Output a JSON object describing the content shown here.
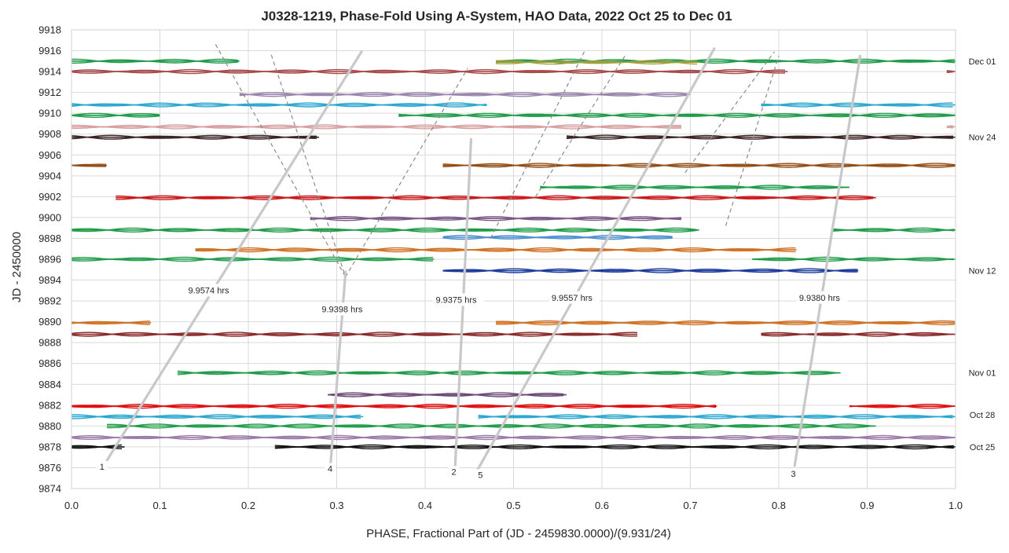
{
  "chart_data": {
    "type": "line",
    "title": "J0328-1219, Phase-Fold Using A-System, HAO Data, 2022 Oct 25 to Dec 01",
    "xlabel": "PHASE, Fractional Part of (JD - 2459830.0000)/(9.931/24)",
    "ylabel": "JD - 2450000",
    "xlim": [
      0,
      1
    ],
    "ylim": [
      9874,
      9918
    ],
    "x_ticks": [
      "0.0",
      "0.1",
      "0.2",
      "0.3",
      "0.4",
      "0.5",
      "0.6",
      "0.7",
      "0.8",
      "0.9",
      "1.0"
    ],
    "y_ticks": [
      "9874",
      "9876",
      "9878",
      "9880",
      "9882",
      "9884",
      "9886",
      "9888",
      "9890",
      "9892",
      "9894",
      "9896",
      "9898",
      "9900",
      "9902",
      "9904",
      "9906",
      "9908",
      "9910",
      "9912",
      "9914",
      "9916",
      "9918"
    ],
    "grid": true,
    "date_labels": [
      {
        "text": "Dec 01",
        "y": 9915
      },
      {
        "text": "Nov 24",
        "y": 9907.7
      },
      {
        "text": "Nov 12",
        "y": 9894.9
      },
      {
        "text": "Nov 01",
        "y": 9885.1
      },
      {
        "text": "Oct 28",
        "y": 9881.1
      },
      {
        "text": "Oct 25",
        "y": 9878
      }
    ],
    "tracks": [
      {
        "y": 9915.0,
        "color": "#1e9c48",
        "segs": [
          [
            0.0,
            0.19
          ],
          [
            0.48,
            1.0
          ]
        ]
      },
      {
        "y": 9914.9,
        "color": "#a0a040",
        "segs": [
          [
            0.48,
            0.71
          ]
        ]
      },
      {
        "y": 9914.0,
        "color": "#a84a4a",
        "segs": [
          [
            0.0,
            0.81
          ],
          [
            0.99,
            1.0
          ]
        ]
      },
      {
        "y": 9911.8,
        "color": "#9a86ad",
        "segs": [
          [
            0.19,
            0.7
          ]
        ]
      },
      {
        "y": 9910.8,
        "color": "#2aa8d0",
        "segs": [
          [
            0.0,
            0.47
          ],
          [
            0.78,
            1.0
          ]
        ]
      },
      {
        "y": 9909.8,
        "color": "#1e9c48",
        "segs": [
          [
            0.0,
            0.1
          ],
          [
            0.37,
            1.0
          ]
        ]
      },
      {
        "y": 9908.7,
        "color": "#d8a0a0",
        "segs": [
          [
            0.0,
            0.69
          ],
          [
            0.99,
            1.0
          ]
        ]
      },
      {
        "y": 9907.7,
        "color": "#3a2424",
        "segs": [
          [
            0.0,
            0.28
          ],
          [
            0.56,
            1.0
          ]
        ]
      },
      {
        "y": 9905.0,
        "color": "#944d14",
        "segs": [
          [
            0.0,
            0.04
          ],
          [
            0.42,
            1.0
          ]
        ]
      },
      {
        "y": 9902.9,
        "color": "#1e9c48",
        "segs": [
          [
            0.53,
            0.88
          ]
        ]
      },
      {
        "y": 9901.9,
        "color": "#cc1a1a",
        "segs": [
          [
            0.05,
            0.91
          ]
        ]
      },
      {
        "y": 9899.9,
        "color": "#7b5a8a",
        "segs": [
          [
            0.27,
            0.69
          ]
        ]
      },
      {
        "y": 9898.8,
        "color": "#1e9c48",
        "segs": [
          [
            0.0,
            0.71
          ],
          [
            0.86,
            1.0
          ]
        ]
      },
      {
        "y": 9898.1,
        "color": "#4a90d0",
        "segs": [
          [
            0.42,
            0.68
          ]
        ]
      },
      {
        "y": 9896.9,
        "color": "#d07020",
        "segs": [
          [
            0.14,
            0.82
          ]
        ]
      },
      {
        "y": 9896.0,
        "color": "#1e9c48",
        "segs": [
          [
            0.0,
            0.41
          ],
          [
            0.77,
            1.0
          ]
        ]
      },
      {
        "y": 9894.9,
        "color": "#1a3a9c",
        "segs": [
          [
            0.42,
            0.89
          ]
        ]
      },
      {
        "y": 9889.9,
        "color": "#d07020",
        "segs": [
          [
            0.0,
            0.09
          ],
          [
            0.48,
            1.0
          ]
        ]
      },
      {
        "y": 9888.8,
        "color": "#8a2a2a",
        "segs": [
          [
            0.0,
            0.64
          ],
          [
            0.78,
            1.0
          ]
        ]
      },
      {
        "y": 9885.1,
        "color": "#1e9c48",
        "segs": [
          [
            0.12,
            0.87
          ]
        ]
      },
      {
        "y": 9883.0,
        "color": "#6a4a7a",
        "segs": [
          [
            0.29,
            0.56
          ]
        ]
      },
      {
        "y": 9881.9,
        "color": "#e01010",
        "segs": [
          [
            0.0,
            0.73
          ],
          [
            0.88,
            1.0
          ]
        ]
      },
      {
        "y": 9880.9,
        "color": "#2aa8d0",
        "segs": [
          [
            0.0,
            0.33
          ],
          [
            0.46,
            1.0
          ]
        ]
      },
      {
        "y": 9880.0,
        "color": "#1e9c48",
        "segs": [
          [
            0.04,
            0.91
          ]
        ]
      },
      {
        "y": 9878.9,
        "color": "#9a7aaa",
        "segs": [
          [
            0.0,
            1.0
          ]
        ]
      },
      {
        "y": 9878.0,
        "color": "#101010",
        "segs": [
          [
            0.0,
            0.06
          ],
          [
            0.23,
            1.0
          ]
        ]
      }
    ],
    "solid_lines": [
      {
        "label": "1",
        "x1": 0.04,
        "y1": 9876.7,
        "x2": 0.328,
        "y2": 9915.9,
        "label_x": 0.03,
        "label_y": 9875.9
      },
      {
        "label": "4",
        "x1": 0.293,
        "y1": 9876.3,
        "x2": 0.31,
        "y2": 9894.8,
        "label_x": 0.288,
        "label_y": 9875.7
      },
      {
        "label": "2",
        "x1": 0.434,
        "y1": 9876.2,
        "x2": 0.452,
        "y2": 9907.5,
        "label_x": 0.428,
        "label_y": 9875.4
      },
      {
        "label": "5",
        "x1": 0.46,
        "y1": 9875.9,
        "x2": 0.727,
        "y2": 9916.2,
        "label_x": 0.458,
        "label_y": 9875.1
      },
      {
        "label": "3",
        "x1": 0.818,
        "y1": 9876.2,
        "x2": 0.892,
        "y2": 9915.5,
        "label_x": 0.812,
        "label_y": 9875.2
      }
    ],
    "dashed_lines": [
      {
        "x1": 0.163,
        "y1": 9916.6,
        "x2": 0.31,
        "y2": 9894.3
      },
      {
        "x1": 0.226,
        "y1": 9915.6,
        "x2": 0.31,
        "y2": 9894.3
      },
      {
        "x1": 0.31,
        "y1": 9894.3,
        "x2": 0.448,
        "y2": 9914.3
      },
      {
        "x1": 0.474,
        "y1": 9898.0,
        "x2": 0.58,
        "y2": 9915.9
      },
      {
        "x1": 0.525,
        "y1": 9902.0,
        "x2": 0.626,
        "y2": 9915.5
      },
      {
        "x1": 0.694,
        "y1": 9904.3,
        "x2": 0.795,
        "y2": 9915.9
      },
      {
        "x1": 0.74,
        "y1": 9899.2,
        "x2": 0.8,
        "y2": 9915.5
      }
    ],
    "annotations": [
      {
        "text": "9.9574 hrs",
        "x": 0.132,
        "y": 9892.8
      },
      {
        "text": "9.9398 hrs",
        "x": 0.283,
        "y": 9891.0
      },
      {
        "text": "9.9375 hrs",
        "x": 0.412,
        "y": 9891.9
      },
      {
        "text": "9.9557 hrs",
        "x": 0.543,
        "y": 9892.1
      },
      {
        "text": "9.9380 hrs",
        "x": 0.823,
        "y": 9892.1
      }
    ]
  }
}
